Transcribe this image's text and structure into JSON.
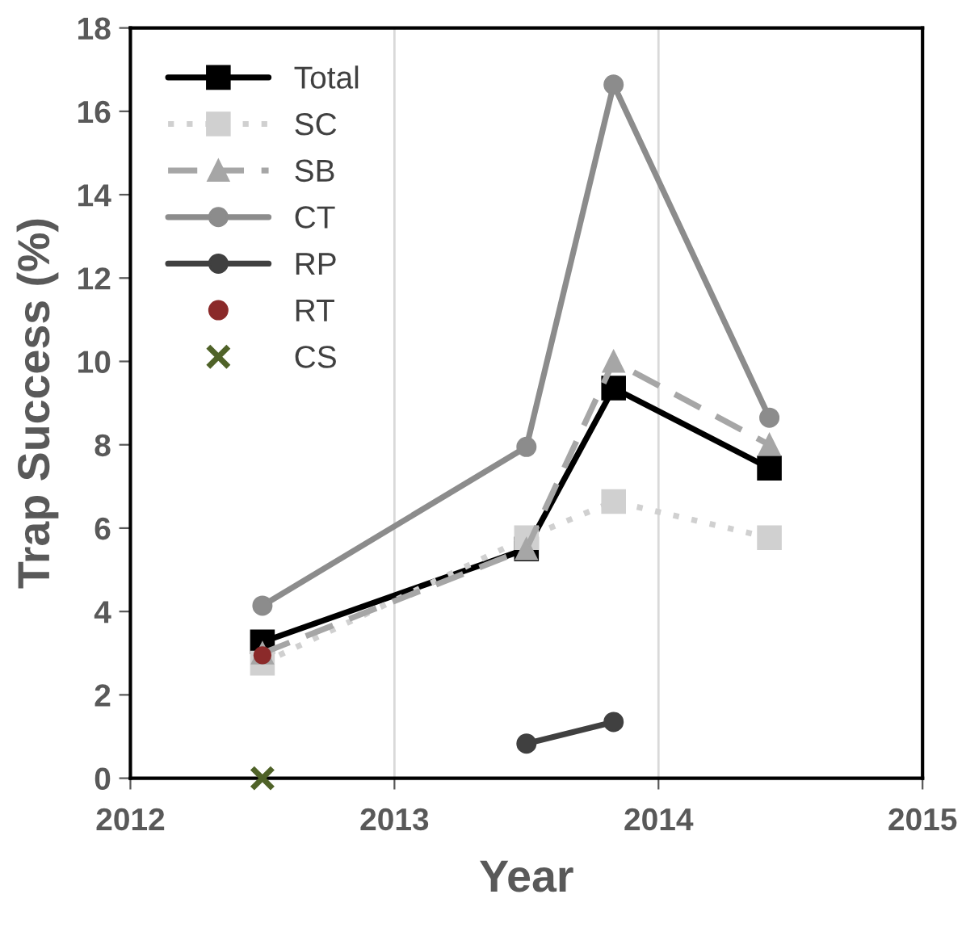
{
  "chart_data": {
    "type": "line",
    "xlabel": "Year",
    "ylabel": "Trap Success (%)",
    "xlim": [
      2012,
      2015
    ],
    "xticks": [
      2012,
      2013,
      2014,
      2015
    ],
    "ylim": [
      0,
      18
    ],
    "yticks": [
      0,
      2,
      4,
      6,
      8,
      10,
      12,
      14,
      16,
      18
    ],
    "grid": "x",
    "legend": "top left",
    "series": [
      {
        "name": "Total",
        "color": "#000000",
        "marker": "square",
        "line_style": "solid",
        "x": [
          2012.5,
          2013.5,
          2013.83,
          2014.42
        ],
        "values": [
          3.27,
          5.5,
          9.36,
          7.44
        ]
      },
      {
        "name": "SC",
        "color": "#d0d0d0",
        "marker": "square",
        "line_style": "dotted",
        "x": [
          2012.5,
          2013.5,
          2013.83,
          2014.42
        ],
        "values": [
          2.76,
          5.77,
          6.64,
          5.77
        ]
      },
      {
        "name": "SB",
        "color": "#a6a6a6",
        "marker": "triangle",
        "line_style": "dashed",
        "x": [
          2012.5,
          2013.5,
          2013.83,
          2014.42
        ],
        "values": [
          3.0,
          5.5,
          10.0,
          8.0
        ]
      },
      {
        "name": "CT",
        "color": "#8c8c8c",
        "marker": "circle",
        "line_style": "solid",
        "x": [
          2012.5,
          2013.5,
          2013.83,
          2014.42
        ],
        "values": [
          4.14,
          7.95,
          16.64,
          8.65
        ]
      },
      {
        "name": "RP",
        "color": "#404040",
        "marker": "circle",
        "line_style": "solid",
        "x": [
          2013.5,
          2013.83
        ],
        "values": [
          0.83,
          1.35
        ]
      },
      {
        "name": "RT",
        "type": "scatter",
        "color": "#8b2a2a",
        "marker": "circle",
        "x": [
          2012.5
        ],
        "values": [
          2.95
        ]
      },
      {
        "name": "CS",
        "type": "scatter",
        "color": "#4f6228",
        "marker": "cross",
        "x": [
          2012.5
        ],
        "values": [
          0
        ]
      }
    ]
  }
}
